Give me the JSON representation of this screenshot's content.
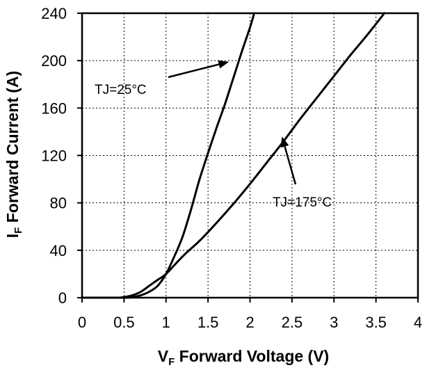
{
  "chart_data": {
    "type": "line",
    "xlabel_main": "V",
    "xlabel_sub": "F",
    "xlabel_rest": " Forward Voltage (V)",
    "ylabel_main": "I",
    "ylabel_sub": "F",
    "ylabel_rest": " Forward Current (A)",
    "xlim": [
      0,
      4
    ],
    "ylim": [
      0,
      240
    ],
    "x_ticks": [
      0,
      0.5,
      1,
      1.5,
      2,
      2.5,
      3,
      3.5,
      4
    ],
    "x_tick_labels": [
      "0",
      "0.5",
      "1",
      "1.5",
      "2",
      "2.5",
      "3",
      "3.5",
      "4"
    ],
    "y_ticks": [
      0,
      40,
      80,
      120,
      160,
      200,
      240
    ],
    "y_tick_labels": [
      "0",
      "40",
      "80",
      "120",
      "160",
      "200",
      "240"
    ],
    "grid": true,
    "series": [
      {
        "name": "TJ=25°C",
        "x": [
          0,
          0.5,
          0.6,
          0.7,
          0.8,
          0.9,
          1.0,
          1.1,
          1.2,
          1.3,
          1.4,
          1.5,
          1.6,
          1.7,
          1.8,
          1.9,
          2.0,
          2.05
        ],
        "y": [
          0,
          0,
          0.5,
          2,
          5,
          10,
          20,
          35,
          52,
          75,
          100,
          122,
          143,
          163,
          185,
          207,
          228,
          240
        ]
      },
      {
        "name": "TJ=175°C",
        "x": [
          0,
          0.4,
          0.5,
          0.6,
          0.7,
          0.8,
          0.9,
          1.0,
          1.2,
          1.4,
          1.6,
          1.8,
          2.0,
          2.2,
          2.4,
          2.6,
          2.8,
          3.0,
          3.2,
          3.4,
          3.6
        ],
        "y": [
          0,
          0,
          0.5,
          2,
          5,
          10,
          15,
          20,
          35,
          48,
          63,
          79,
          96,
          114,
          132,
          151,
          169,
          187,
          205,
          222,
          240
        ]
      }
    ],
    "annotations": [
      {
        "text": "TJ=25°C",
        "target_x": 1.75,
        "target_y": 199
      },
      {
        "text": "TJ=175°C",
        "target_x": 2.38,
        "target_y": 136
      }
    ]
  }
}
